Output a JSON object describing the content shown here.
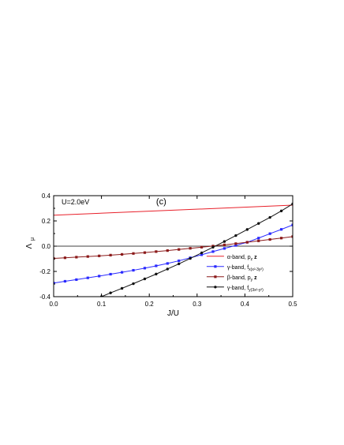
{
  "chart_data": {
    "type": "line",
    "panel_label": "(c)",
    "annotation": "U=2.0eV",
    "xlabel": "J/U",
    "ylabel": "Λ",
    "ylabel_subscript": "μ",
    "xlim": [
      0.0,
      0.5
    ],
    "ylim": [
      -0.4,
      0.4
    ],
    "xticks": [
      0.0,
      0.1,
      0.2,
      0.3,
      0.4,
      0.5
    ],
    "xtick_labels": [
      "0.0",
      "0.1",
      "0.2",
      "0.3",
      "0.4",
      "0.5"
    ],
    "yticks": [
      -0.4,
      -0.2,
      0.0,
      0.2,
      0.4
    ],
    "ytick_labels": [
      "-0.4",
      "-0.2",
      "0.0",
      "0.2",
      "0.4"
    ],
    "zero_line": true,
    "legend_position": "lower-right",
    "series": [
      {
        "legend": {
          "prefix": "α-band, p",
          "sub": "z",
          "suffix": " z",
          "suffix_bold": true
        },
        "color": "#e8202a",
        "marker": "none",
        "x": [
          0.0,
          0.5
        ],
        "y": [
          0.245,
          0.325
        ]
      },
      {
        "legend": {
          "prefix": "γ-band, f",
          "sub": "x(x²-3y²)",
          "suffix": "",
          "suffix_bold": false
        },
        "color": "#2a2aff",
        "marker": "square",
        "x": [
          0.0,
          0.0238,
          0.0476,
          0.0714,
          0.0952,
          0.119,
          0.1429,
          0.1667,
          0.1905,
          0.2143,
          0.2381,
          0.2619,
          0.2857,
          0.3095,
          0.3333,
          0.3571,
          0.381,
          0.4048,
          0.4286,
          0.4524,
          0.4762,
          0.5
        ],
        "y": [
          -0.292,
          -0.278,
          -0.265,
          -0.251,
          -0.237,
          -0.222,
          -0.207,
          -0.191,
          -0.174,
          -0.156,
          -0.137,
          -0.116,
          -0.092,
          -0.068,
          -0.043,
          -0.018,
          0.006,
          0.031,
          0.064,
          0.099,
          0.133,
          0.168
        ]
      },
      {
        "legend": {
          "prefix": "β-band, p",
          "sub": "y",
          "suffix": " z",
          "suffix_bold": true
        },
        "color": "#8b1a1a",
        "marker": "square",
        "x": [
          0.0,
          0.0238,
          0.0476,
          0.0714,
          0.0952,
          0.119,
          0.1429,
          0.1667,
          0.1905,
          0.2143,
          0.2381,
          0.2619,
          0.2857,
          0.3095,
          0.3333,
          0.3571,
          0.381,
          0.4048,
          0.4286,
          0.4524,
          0.4762,
          0.5
        ],
        "y": [
          -0.097,
          -0.092,
          -0.087,
          -0.082,
          -0.077,
          -0.071,
          -0.065,
          -0.058,
          -0.051,
          -0.043,
          -0.035,
          -0.026,
          -0.017,
          -0.008,
          0.001,
          0.01,
          0.02,
          0.031,
          0.042,
          0.053,
          0.064,
          0.076
        ]
      },
      {
        "legend": {
          "prefix": "γ-band, f",
          "sub": "y(3x²-y²)",
          "suffix": "",
          "suffix_bold": false
        },
        "color": "#111111",
        "marker": "circle",
        "x": [
          0.1,
          0.119,
          0.1429,
          0.1667,
          0.1905,
          0.2143,
          0.2381,
          0.2619,
          0.2857,
          0.3095,
          0.3333,
          0.3571,
          0.381,
          0.4048,
          0.4286,
          0.4524,
          0.4762,
          0.5
        ],
        "y": [
          -0.4,
          -0.37,
          -0.334,
          -0.297,
          -0.259,
          -0.221,
          -0.181,
          -0.14,
          -0.097,
          -0.053,
          -0.008,
          0.037,
          0.084,
          0.132,
          0.18,
          0.228,
          0.279,
          0.335
        ]
      }
    ]
  }
}
